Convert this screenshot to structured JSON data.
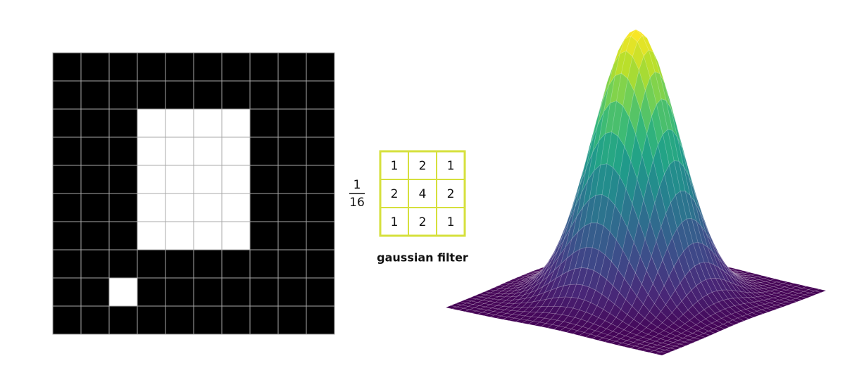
{
  "image": {
    "pixels": [
      [
        0,
        0,
        0,
        0,
        0,
        0,
        0,
        0,
        0,
        0
      ],
      [
        0,
        0,
        0,
        0,
        0,
        0,
        0,
        0,
        0,
        0
      ],
      [
        0,
        0,
        0,
        1,
        1,
        1,
        1,
        0,
        0,
        0
      ],
      [
        0,
        0,
        0,
        1,
        1,
        1,
        1,
        0,
        0,
        0
      ],
      [
        0,
        0,
        0,
        1,
        1,
        1,
        1,
        0,
        0,
        0
      ],
      [
        0,
        0,
        0,
        1,
        1,
        1,
        1,
        0,
        0,
        0
      ],
      [
        0,
        0,
        0,
        1,
        1,
        1,
        1,
        0,
        0,
        0
      ],
      [
        0,
        0,
        0,
        0,
        0,
        0,
        0,
        0,
        0,
        0
      ],
      [
        0,
        0,
        1,
        0,
        0,
        0,
        0,
        0,
        0,
        0
      ],
      [
        0,
        0,
        0,
        0,
        0,
        0,
        0,
        0,
        0,
        0
      ]
    ]
  },
  "kernel": {
    "numerator": 1,
    "denominator": 16,
    "values": [
      [
        1,
        2,
        1
      ],
      [
        2,
        4,
        2
      ],
      [
        1,
        2,
        1
      ]
    ],
    "caption": "gaussian filter"
  }
}
